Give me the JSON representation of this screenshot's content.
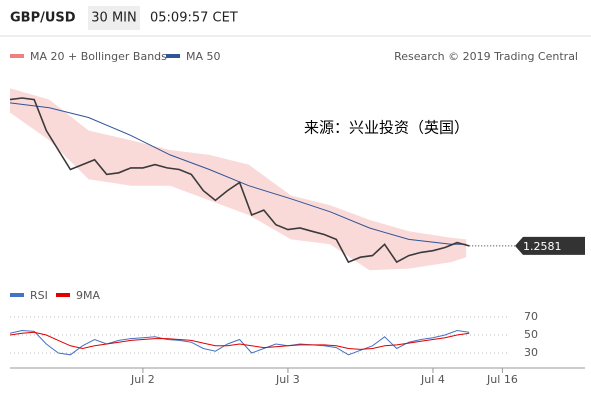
{
  "chart_data": [
    {
      "type": "line",
      "title": "GBP/USD",
      "interval": "30 MIN",
      "time": "05:09:57 CET",
      "source": "Research © 2019 Trading Central",
      "annotation": "来源：兴业投资（英国）",
      "xlim": [
        0,
        190
      ],
      "ylim": [
        1.256,
        1.268
      ],
      "color": "#3a3a3a",
      "x": [
        0,
        4,
        8,
        12,
        16,
        20,
        24,
        28,
        32,
        36,
        40,
        44,
        48,
        52,
        56,
        60,
        64,
        68,
        72,
        76,
        80,
        84,
        88,
        92,
        96,
        100,
        104,
        108,
        112,
        116,
        120,
        124,
        128,
        132,
        136,
        140,
        144,
        148,
        152
      ],
      "values": [
        1.2671,
        1.2672,
        1.2671,
        1.2652,
        1.264,
        1.2628,
        1.2631,
        1.2634,
        1.2625,
        1.2626,
        1.2629,
        1.2629,
        1.2631,
        1.2629,
        1.2628,
        1.2625,
        1.2615,
        1.2609,
        1.2615,
        1.262,
        1.26,
        1.2603,
        1.2594,
        1.2591,
        1.2592,
        1.259,
        1.2588,
        1.2585,
        1.2571,
        1.2574,
        1.2575,
        1.2582,
        1.2571,
        1.2575,
        1.2577,
        1.2578,
        1.258,
        1.2583,
        1.2581
      ],
      "last_value": 1.2581,
      "bands": {
        "name": "MA 20 + Bollinger Bands",
        "color": "#f08080",
        "x": [
          0,
          13,
          26,
          40,
          53,
          66,
          79,
          93,
          106,
          119,
          132,
          146,
          151
        ],
        "upper": [
          1.2678,
          1.2671,
          1.2652,
          1.2646,
          1.264,
          1.2637,
          1.2631,
          1.2612,
          1.2606,
          1.2597,
          1.259,
          1.2586,
          1.2585
        ],
        "lower": [
          1.2663,
          1.2646,
          1.2622,
          1.2618,
          1.2618,
          1.2609,
          1.26,
          1.2585,
          1.2582,
          1.2566,
          1.2567,
          1.2571,
          1.2574
        ]
      },
      "series": [
        {
          "name": "MA 50",
          "color": "#2f5597",
          "x": [
            0,
            13,
            26,
            40,
            53,
            66,
            79,
            93,
            106,
            119,
            132,
            146,
            151
          ],
          "values": [
            1.2669,
            1.2666,
            1.266,
            1.2649,
            1.2637,
            1.2628,
            1.2618,
            1.261,
            1.2602,
            1.2592,
            1.2585,
            1.2582,
            1.2582
          ]
        }
      ]
    },
    {
      "type": "line",
      "xlim": [
        0,
        190
      ],
      "ylim": [
        20,
        80
      ],
      "yticks": [
        30,
        50,
        70
      ],
      "xticks": [
        {
          "value": 44,
          "label": "Jul 2"
        },
        {
          "value": 92,
          "label": "Jul 3"
        },
        {
          "value": 140,
          "label": "Jul 4"
        },
        {
          "value": 163,
          "label": "Jul 16"
        }
      ],
      "x": [
        0,
        4,
        8,
        12,
        16,
        20,
        24,
        28,
        32,
        36,
        40,
        44,
        48,
        52,
        56,
        60,
        64,
        68,
        72,
        76,
        80,
        84,
        88,
        92,
        96,
        100,
        104,
        108,
        112,
        116,
        120,
        124,
        128,
        132,
        136,
        140,
        144,
        148,
        152
      ],
      "series": [
        {
          "name": "RSI",
          "color": "#4472c4",
          "values": [
            52,
            55,
            54,
            40,
            30,
            28,
            38,
            45,
            40,
            44,
            46,
            47,
            48,
            45,
            44,
            42,
            35,
            32,
            40,
            45,
            30,
            35,
            40,
            38,
            40,
            39,
            38,
            36,
            28,
            33,
            38,
            48,
            35,
            42,
            45,
            47,
            50,
            55,
            53
          ]
        },
        {
          "name": "9MA",
          "color": "#e00000",
          "values": [
            50,
            52,
            53,
            50,
            44,
            38,
            35,
            38,
            40,
            42,
            44,
            45,
            46,
            46,
            45,
            44,
            41,
            38,
            38,
            40,
            38,
            36,
            37,
            38,
            39,
            39,
            39,
            38,
            35,
            34,
            35,
            38,
            39,
            41,
            43,
            45,
            47,
            50,
            52
          ]
        }
      ]
    }
  ]
}
